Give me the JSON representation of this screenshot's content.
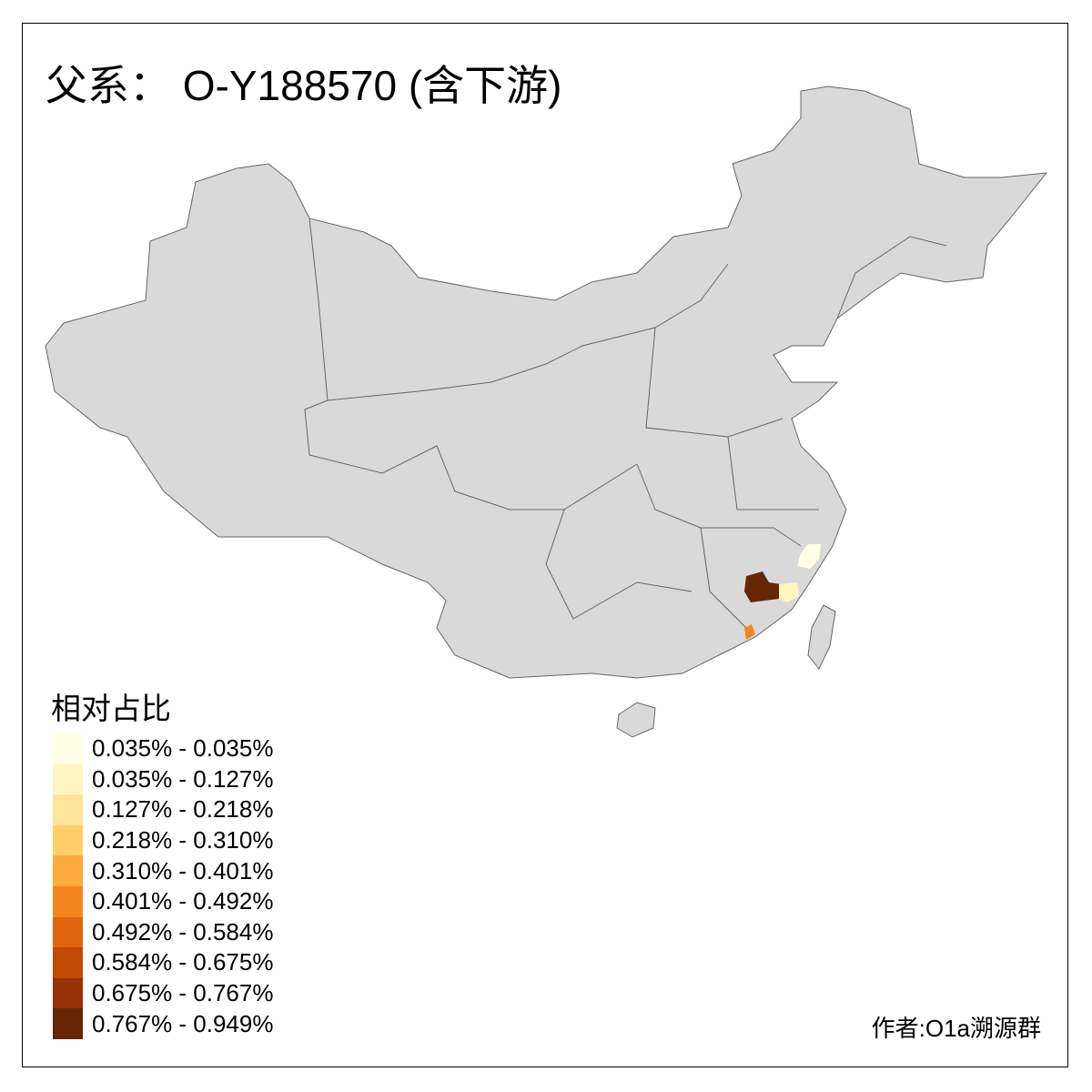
{
  "title": "父系： O-Y188570 (含下游)",
  "legend": {
    "title": "相对占比",
    "items": [
      {
        "label": "0.035% - 0.035%",
        "color": "#FFFFE5"
      },
      {
        "label": "0.035% - 0.127%",
        "color": "#FFF5C0"
      },
      {
        "label": "0.127% - 0.218%",
        "color": "#FEE59A"
      },
      {
        "label": "0.218% - 0.310%",
        "color": "#FECF66"
      },
      {
        "label": "0.310% - 0.401%",
        "color": "#FDAB3C"
      },
      {
        "label": "0.401% - 0.492%",
        "color": "#F3861F"
      },
      {
        "label": "0.492% - 0.584%",
        "color": "#E1640E"
      },
      {
        "label": "0.584% - 0.675%",
        "color": "#C04A04"
      },
      {
        "label": "0.675% - 0.767%",
        "color": "#983005"
      },
      {
        "label": "0.767% - 0.949%",
        "color": "#662506"
      }
    ]
  },
  "map": {
    "base_color": "#D9D9D9",
    "border_color": "#666666"
  },
  "author": "作者:O1a溯源群"
}
